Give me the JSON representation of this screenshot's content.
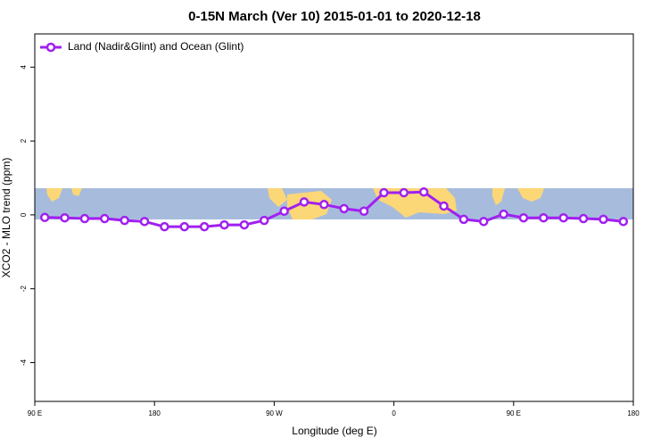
{
  "chart_data": {
    "type": "line",
    "title": "0-15N March (Ver 10)   2015-01-01 to 2020-12-18",
    "x_label": "Longitude (deg E)",
    "y_label": "XCO2 - MLO trend (ppm)",
    "legend_position": "top-left",
    "xlim": [
      90,
      540
    ],
    "xticks": [
      {
        "value": 90,
        "label": "90 E"
      },
      180,
      {
        "value": 270,
        "label": "90 W"
      },
      {
        "value": 360,
        "label": "0"
      },
      {
        "value": 450,
        "label": "90 E"
      },
      {
        "value": 540,
        "label": "180"
      }
    ],
    "ylim": [
      -5.05,
      4.9
    ],
    "yticks": [
      -4,
      -2,
      0,
      2,
      4
    ],
    "x": [
      97.5,
      112.5,
      127.5,
      142.5,
      157.5,
      172.5,
      187.5,
      202.5,
      217.5,
      232.5,
      247.5,
      262.5,
      277.5,
      292.5,
      307.5,
      322.5,
      337.5,
      352.5,
      367.5,
      382.5,
      397.5,
      412.5,
      427.5,
      442.5,
      457.5,
      472.5,
      487.5,
      502.5,
      517.5,
      532.5
    ],
    "series": [
      {
        "name": "Land (Nadir&Glint) and Ocean (Glint)",
        "color": "#a020f0",
        "values": [
          -0.07,
          -0.08,
          -0.1,
          -0.1,
          -0.15,
          -0.18,
          -0.32,
          -0.32,
          -0.32,
          -0.27,
          -0.27,
          -0.15,
          0.1,
          0.35,
          0.28,
          0.17,
          0.1,
          0.6,
          0.6,
          0.62,
          0.24,
          -0.12,
          -0.18,
          0.02,
          -0.08,
          -0.08,
          -0.08,
          -0.1,
          -0.12,
          -0.18
        ]
      }
    ]
  }
}
